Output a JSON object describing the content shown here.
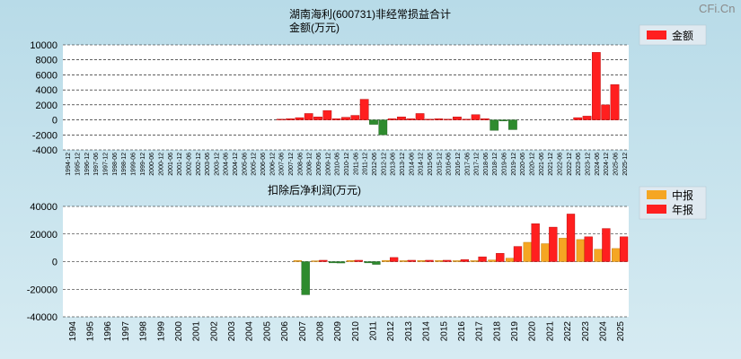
{
  "brand": "CFi.Cn",
  "chart_data": [
    {
      "type": "bar",
      "title": "湖南海利(600731)非经常损益合计",
      "ylabel": "金额(万元)",
      "legend": [
        {
          "name": "金额",
          "color": "#ff1f1f"
        }
      ],
      "ylim": [
        -4000,
        10000
      ],
      "yticks": [
        10000,
        8000,
        6000,
        4000,
        2000,
        0,
        -2000,
        -4000
      ],
      "categories": [
        "1994-12",
        "1995-12",
        "1996-12",
        "1997-06",
        "1997-12",
        "1998-06",
        "1998-12",
        "1999-06",
        "1999-12",
        "2000-06",
        "2000-12",
        "2001-06",
        "2001-12",
        "2002-06",
        "2002-12",
        "2003-06",
        "2003-12",
        "2004-06",
        "2004-12",
        "2005-06",
        "2005-12",
        "2006-06",
        "2006-12",
        "2007-06",
        "2007-12",
        "2008-06",
        "2008-12",
        "2009-06",
        "2009-12",
        "2010-06",
        "2010-12",
        "2011-06",
        "2011-12",
        "2012-06",
        "2012-12",
        "2013-06",
        "2013-12",
        "2014-06",
        "2014-12",
        "2015-06",
        "2015-12",
        "2016-06",
        "2016-12",
        "2017-06",
        "2017-12",
        "2018-06",
        "2018-12",
        "2019-06",
        "2019-12",
        "2020-06",
        "2020-12",
        "2021-06",
        "2021-12",
        "2022-06",
        "2022-12",
        "2023-06",
        "2023-12",
        "2024-06",
        "2024-12",
        "2025-06",
        "2025-12"
      ],
      "values": [
        0,
        0,
        0,
        0,
        0,
        0,
        0,
        0,
        0,
        0,
        0,
        0,
        0,
        0,
        0,
        0,
        0,
        0,
        0,
        0,
        0,
        0,
        0,
        100,
        150,
        300,
        850,
        400,
        1250,
        150,
        350,
        600,
        2750,
        -600,
        -2000,
        150,
        400,
        150,
        850,
        100,
        150,
        100,
        400,
        100,
        700,
        150,
        -1400,
        -150,
        -1300,
        0,
        0,
        0,
        0,
        0,
        0,
        300,
        500,
        9000,
        2000,
        4700,
        0
      ]
    },
    {
      "type": "bar",
      "title": "扣除后净利润(万元)",
      "legend": [
        {
          "name": "中报",
          "color": "#f5a623"
        },
        {
          "name": "年报",
          "color": "#ff1f1f"
        }
      ],
      "ylim": [
        -40000,
        40000
      ],
      "yticks": [
        40000,
        20000,
        0,
        -20000,
        -40000
      ],
      "categories": [
        "1994",
        "1995",
        "1996",
        "1997",
        "1998",
        "1999",
        "2000",
        "2001",
        "2002",
        "2003",
        "2004",
        "2005",
        "2006",
        "2007",
        "2008",
        "2009",
        "2010",
        "2011",
        "2012",
        "2013",
        "2014",
        "2015",
        "2016",
        "2017",
        "2018",
        "2019",
        "2020",
        "2021",
        "2022",
        "2023",
        "2024",
        "2025"
      ],
      "series": [
        {
          "name": "中报",
          "values": [
            0,
            0,
            0,
            0,
            0,
            0,
            0,
            0,
            0,
            0,
            0,
            0,
            0,
            800,
            600,
            -900,
            800,
            -900,
            900,
            700,
            800,
            800,
            700,
            700,
            1200,
            2500,
            14000,
            13000,
            17000,
            16000,
            9000,
            9500
          ]
        },
        {
          "name": "年报",
          "values": [
            0,
            0,
            0,
            0,
            0,
            0,
            0,
            0,
            0,
            0,
            0,
            0,
            0,
            -24000,
            1000,
            -1000,
            1000,
            -2000,
            3000,
            1000,
            1000,
            1000,
            1500,
            3500,
            6000,
            11000,
            27500,
            25000,
            34500,
            18000,
            24000,
            18000
          ]
        }
      ]
    }
  ]
}
